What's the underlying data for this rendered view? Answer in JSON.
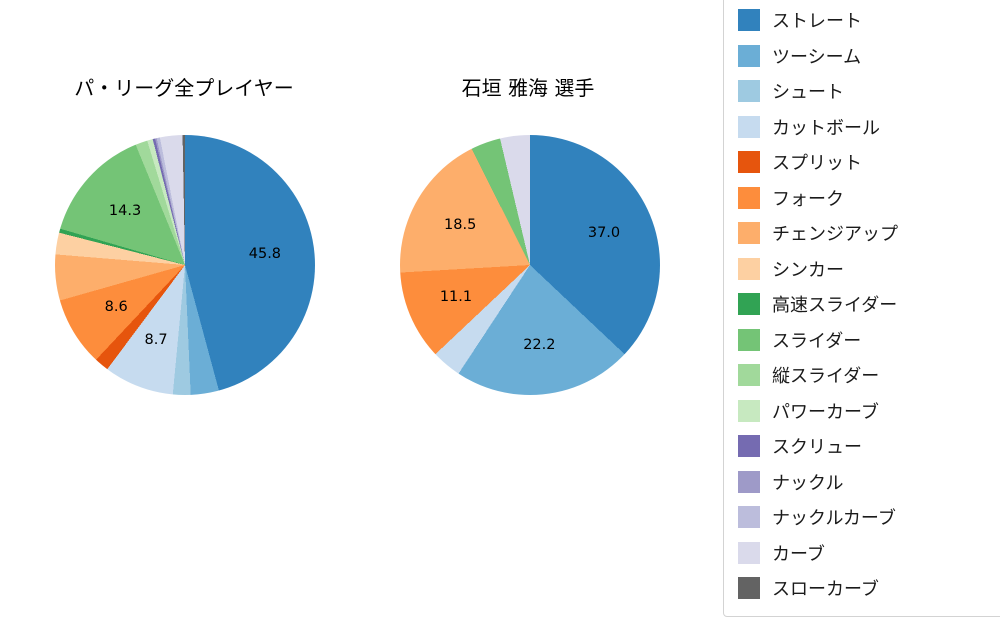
{
  "figure": {
    "background": "#ffffff"
  },
  "chart_data": [
    {
      "type": "pie",
      "title": "パ・リーグ全プレイヤー",
      "unit": "percent",
      "start_angle": "top",
      "direction": "clockwise",
      "slices": [
        {
          "name": "ストレート",
          "value": 45.8,
          "label": "45.8"
        },
        {
          "name": "ツーシーム",
          "value": 3.5,
          "label": null
        },
        {
          "name": "シュート",
          "value": 2.2,
          "label": null
        },
        {
          "name": "カットボール",
          "value": 8.7,
          "label": "8.7"
        },
        {
          "name": "スプリット",
          "value": 1.8,
          "label": null
        },
        {
          "name": "フォーク",
          "value": 8.6,
          "label": "8.6"
        },
        {
          "name": "チェンジアップ",
          "value": 5.7,
          "label": null
        },
        {
          "name": "シンカー",
          "value": 2.7,
          "label": null
        },
        {
          "name": "高速スライダー",
          "value": 0.5,
          "label": null
        },
        {
          "name": "スライダー",
          "value": 14.3,
          "label": "14.3"
        },
        {
          "name": "縦スライダー",
          "value": 1.5,
          "label": null
        },
        {
          "name": "パワーカーブ",
          "value": 0.7,
          "label": null
        },
        {
          "name": "スクリュー",
          "value": 0.3,
          "label": null
        },
        {
          "name": "ナックル",
          "value": 0.2,
          "label": null
        },
        {
          "name": "ナックルカーブ",
          "value": 0.4,
          "label": null
        },
        {
          "name": "カーブ",
          "value": 2.8,
          "label": null
        },
        {
          "name": "スローカーブ",
          "value": 0.3,
          "label": null
        }
      ]
    },
    {
      "type": "pie",
      "title": "石垣 雅海 選手",
      "unit": "percent",
      "start_angle": "top",
      "direction": "clockwise",
      "slices": [
        {
          "name": "ストレート",
          "value": 37.0,
          "label": "37.0"
        },
        {
          "name": "ツーシーム",
          "value": 22.2,
          "label": "22.2"
        },
        {
          "name": "カットボール",
          "value": 3.7,
          "label": null
        },
        {
          "name": "フォーク",
          "value": 11.1,
          "label": "11.1"
        },
        {
          "name": "チェンジアップ",
          "value": 18.5,
          "label": "18.5"
        },
        {
          "name": "スライダー",
          "value": 3.7,
          "label": null
        },
        {
          "name": "カーブ",
          "value": 3.7,
          "label": null
        }
      ]
    }
  ],
  "legend": {
    "items": [
      {
        "label": "ストレート",
        "color": "#3182bd"
      },
      {
        "label": "ツーシーム",
        "color": "#6baed6"
      },
      {
        "label": "シュート",
        "color": "#9ecae1"
      },
      {
        "label": "カットボール",
        "color": "#c6dbef"
      },
      {
        "label": "スプリット",
        "color": "#e6550d"
      },
      {
        "label": "フォーク",
        "color": "#fd8d3c"
      },
      {
        "label": "チェンジアップ",
        "color": "#fdae6b"
      },
      {
        "label": "シンカー",
        "color": "#fdd0a2"
      },
      {
        "label": "高速スライダー",
        "color": "#31a354"
      },
      {
        "label": "スライダー",
        "color": "#74c476"
      },
      {
        "label": "縦スライダー",
        "color": "#a1d99b"
      },
      {
        "label": "パワーカーブ",
        "color": "#c7e9c0"
      },
      {
        "label": "スクリュー",
        "color": "#756bb1"
      },
      {
        "label": "ナックル",
        "color": "#9e9ac8"
      },
      {
        "label": "ナックルカーブ",
        "color": "#bcbddc"
      },
      {
        "label": "カーブ",
        "color": "#dadaeb"
      },
      {
        "label": "スローカーブ",
        "color": "#636363"
      }
    ]
  }
}
